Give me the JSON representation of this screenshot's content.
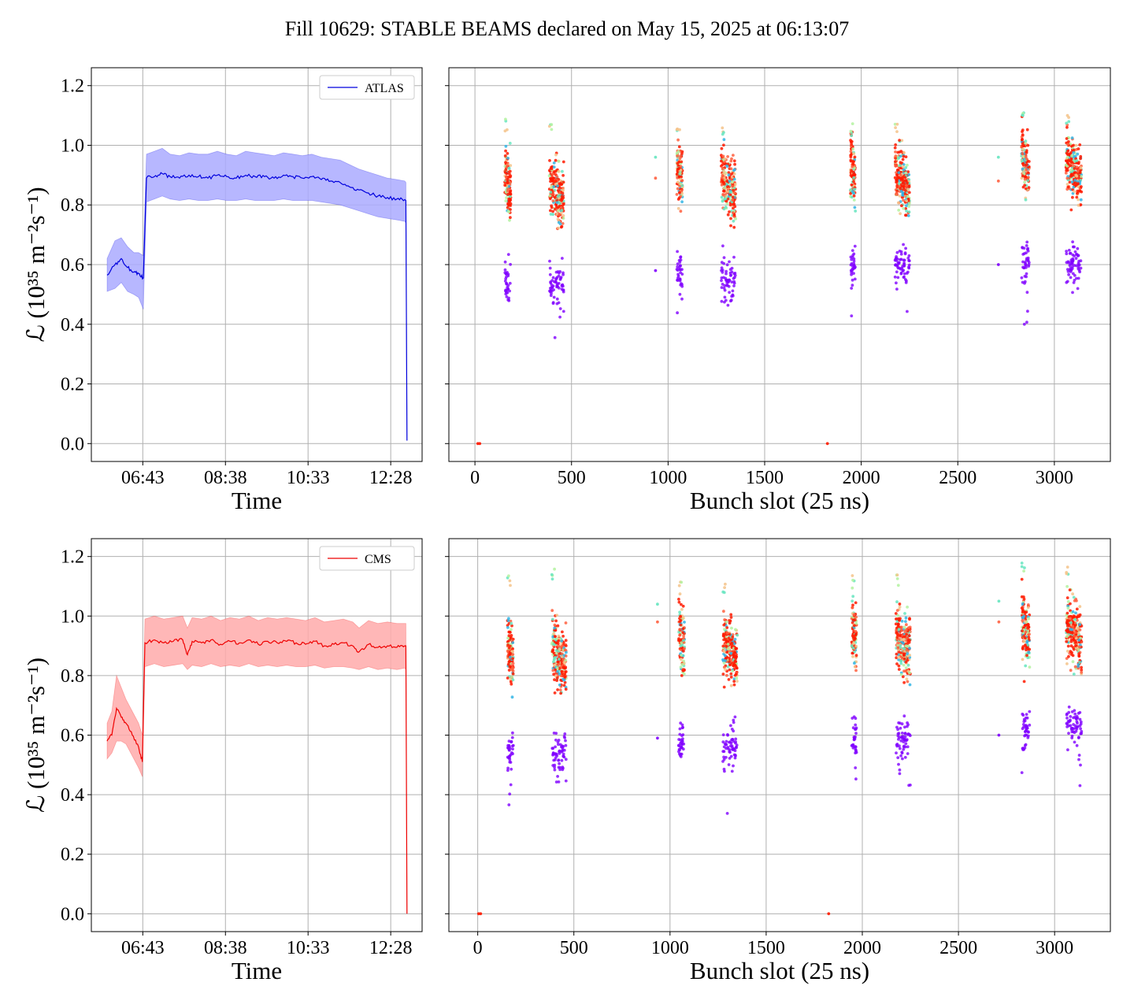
{
  "figure": {
    "title": "Fill 10629: STABLE BEAMS declared on May 15, 2025 at 06:13:07"
  },
  "chart_data": [
    {
      "type": "line",
      "panel": "top-left",
      "series": [
        {
          "name": "ATLAS",
          "color": "#0000dd",
          "band_color": "#aaaaff",
          "points": [
            [
              0.0,
              0.565,
              0.51,
              0.62
            ],
            [
              0.025,
              0.6,
              0.52,
              0.68
            ],
            [
              0.045,
              0.62,
              0.54,
              0.69
            ],
            [
              0.065,
              0.59,
              0.51,
              0.66
            ],
            [
              0.085,
              0.575,
              0.5,
              0.64
            ],
            [
              0.1,
              0.57,
              0.49,
              0.64
            ],
            [
              0.115,
              0.555,
              0.45,
              0.63
            ],
            [
              0.125,
              0.89,
              0.81,
              0.97
            ],
            [
              0.15,
              0.895,
              0.82,
              0.98
            ],
            [
              0.175,
              0.905,
              0.83,
              0.99
            ],
            [
              0.2,
              0.895,
              0.82,
              0.97
            ],
            [
              0.23,
              0.89,
              0.815,
              0.965
            ],
            [
              0.26,
              0.9,
              0.82,
              0.975
            ],
            [
              0.29,
              0.895,
              0.815,
              0.97
            ],
            [
              0.32,
              0.89,
              0.815,
              0.97
            ],
            [
              0.35,
              0.9,
              0.82,
              0.98
            ],
            [
              0.38,
              0.895,
              0.815,
              0.97
            ],
            [
              0.41,
              0.89,
              0.815,
              0.965
            ],
            [
              0.44,
              0.9,
              0.82,
              0.98
            ],
            [
              0.47,
              0.895,
              0.815,
              0.975
            ],
            [
              0.5,
              0.895,
              0.815,
              0.97
            ],
            [
              0.53,
              0.89,
              0.815,
              0.965
            ],
            [
              0.56,
              0.9,
              0.82,
              0.975
            ],
            [
              0.59,
              0.895,
              0.815,
              0.97
            ],
            [
              0.62,
              0.89,
              0.815,
              0.965
            ],
            [
              0.65,
              0.895,
              0.815,
              0.97
            ],
            [
              0.68,
              0.885,
              0.81,
              0.96
            ],
            [
              0.71,
              0.88,
              0.805,
              0.955
            ],
            [
              0.74,
              0.875,
              0.8,
              0.95
            ],
            [
              0.77,
              0.86,
              0.79,
              0.935
            ],
            [
              0.8,
              0.85,
              0.78,
              0.92
            ],
            [
              0.83,
              0.84,
              0.77,
              0.91
            ],
            [
              0.86,
              0.83,
              0.76,
              0.9
            ],
            [
              0.89,
              0.825,
              0.755,
              0.89
            ],
            [
              0.92,
              0.82,
              0.75,
              0.885
            ],
            [
              0.945,
              0.818,
              0.745,
              0.88
            ],
            [
              0.9485,
              0.815,
              0.74,
              0.875
            ],
            [
              0.952,
              0.01,
              0.01,
              0.01
            ]
          ]
        }
      ],
      "xlabel": "Time",
      "ylabel": "ℒ (10³⁵ m⁻²s⁻¹)",
      "xticks": [
        {
          "pos": 0.1133,
          "label": "06:43"
        },
        {
          "pos": 0.3757,
          "label": "08:38"
        },
        {
          "pos": 0.638,
          "label": "10:33"
        },
        {
          "pos": 0.9004,
          "label": "12:28"
        }
      ],
      "xlim": [
        -0.05,
        1.0
      ],
      "ylim": [
        -0.06,
        1.26
      ],
      "yticks": [
        0.0,
        0.2,
        0.4,
        0.6,
        0.8,
        1.0,
        1.2
      ],
      "grid": true,
      "legend": "top-right"
    },
    {
      "type": "scatter",
      "panel": "top-right",
      "xlabel": "Bunch slot (25 ns)",
      "ylabel": "",
      "xlim": [
        -135,
        3290
      ],
      "ylim": [
        -0.06,
        1.26
      ],
      "xticks": [
        0,
        500,
        1000,
        1500,
        2000,
        2500,
        3000
      ],
      "yticks": [
        0.0,
        0.2,
        0.4,
        0.6,
        0.8,
        1.0,
        1.2
      ],
      "grid": true,
      "clusters": [
        {
          "x_start": 155,
          "x_end": 185,
          "lead_y": 0.55,
          "train_y": 0.87,
          "top": 1.09,
          "bottom": 0.7
        },
        {
          "x_start": 385,
          "x_end": 460,
          "lead_y": 0.54,
          "train_y": 0.84,
          "top": 1.1,
          "bottom": 0.72
        },
        {
          "x_start": 1045,
          "x_end": 1075,
          "lead_y": 0.57,
          "train_y": 0.9,
          "top": 1.06,
          "bottom": 0.74
        },
        {
          "x_start": 1275,
          "x_end": 1350,
          "lead_y": 0.55,
          "train_y": 0.86,
          "top": 1.06,
          "bottom": 0.72
        },
        {
          "x_start": 1945,
          "x_end": 1970,
          "lead_y": 0.59,
          "train_y": 0.91,
          "top": 1.08,
          "bottom": 0.76
        },
        {
          "x_start": 2175,
          "x_end": 2250,
          "lead_y": 0.59,
          "train_y": 0.88,
          "top": 1.08,
          "bottom": 0.76
        },
        {
          "x_start": 2830,
          "x_end": 2870,
          "lead_y": 0.6,
          "train_y": 0.93,
          "top": 1.12,
          "bottom": 0.74
        },
        {
          "x_start": 3060,
          "x_end": 3140,
          "lead_y": 0.61,
          "train_y": 0.92,
          "top": 1.11,
          "bottom": 0.78
        }
      ],
      "isolated": [
        {
          "x": 935,
          "y": 0.96
        },
        {
          "x": 935,
          "y": 0.89
        },
        {
          "x": 935,
          "y": 0.58
        },
        {
          "x": 2710,
          "y": 0.96
        },
        {
          "x": 2710,
          "y": 0.88
        },
        {
          "x": 2710,
          "y": 0.6
        },
        {
          "x": 15,
          "y": 0.0
        },
        {
          "x": 25,
          "y": 0.0
        },
        {
          "x": 1825,
          "y": 0.0
        }
      ],
      "palette": [
        "#8000ff",
        "#33b5e5",
        "#66e5c0",
        "#b3f2a0",
        "#f5c38a",
        "#ff6040",
        "#ff1a00"
      ],
      "seed": 17
    },
    {
      "type": "line",
      "panel": "bottom-left",
      "series": [
        {
          "name": "CMS",
          "color": "#ee0000",
          "band_color": "#ffaaaa",
          "points": [
            [
              0.0,
              0.58,
              0.52,
              0.64
            ],
            [
              0.015,
              0.6,
              0.54,
              0.68
            ],
            [
              0.03,
              0.69,
              0.58,
              0.8
            ],
            [
              0.045,
              0.66,
              0.58,
              0.76
            ],
            [
              0.06,
              0.64,
              0.57,
              0.72
            ],
            [
              0.08,
              0.6,
              0.53,
              0.68
            ],
            [
              0.1,
              0.56,
              0.49,
              0.64
            ],
            [
              0.112,
              0.51,
              0.46,
              0.6
            ],
            [
              0.12,
              0.91,
              0.83,
              0.99
            ],
            [
              0.15,
              0.92,
              0.84,
              1.0
            ],
            [
              0.18,
              0.91,
              0.83,
              0.99
            ],
            [
              0.21,
              0.915,
              0.835,
              0.995
            ],
            [
              0.24,
              0.92,
              0.84,
              1.0
            ],
            [
              0.255,
              0.87,
              0.82,
              0.96
            ],
            [
              0.27,
              0.915,
              0.835,
              0.995
            ],
            [
              0.3,
              0.91,
              0.83,
              0.99
            ],
            [
              0.33,
              0.92,
              0.84,
              1.0
            ],
            [
              0.36,
              0.905,
              0.83,
              0.985
            ],
            [
              0.39,
              0.915,
              0.835,
              0.995
            ],
            [
              0.42,
              0.91,
              0.83,
              0.99
            ],
            [
              0.45,
              0.92,
              0.84,
              1.0
            ],
            [
              0.48,
              0.905,
              0.83,
              0.985
            ],
            [
              0.51,
              0.915,
              0.835,
              0.995
            ],
            [
              0.54,
              0.91,
              0.83,
              0.99
            ],
            [
              0.57,
              0.915,
              0.835,
              0.995
            ],
            [
              0.6,
              0.91,
              0.83,
              0.99
            ],
            [
              0.63,
              0.905,
              0.83,
              0.985
            ],
            [
              0.66,
              0.915,
              0.835,
              0.995
            ],
            [
              0.69,
              0.9,
              0.825,
              0.98
            ],
            [
              0.72,
              0.905,
              0.83,
              0.985
            ],
            [
              0.75,
              0.91,
              0.83,
              0.99
            ],
            [
              0.78,
              0.9,
              0.825,
              0.98
            ],
            [
              0.8,
              0.88,
              0.82,
              0.96
            ],
            [
              0.83,
              0.905,
              0.83,
              0.985
            ],
            [
              0.86,
              0.895,
              0.82,
              0.975
            ],
            [
              0.89,
              0.9,
              0.825,
              0.98
            ],
            [
              0.92,
              0.895,
              0.82,
              0.975
            ],
            [
              0.945,
              0.9,
              0.825,
              0.975
            ],
            [
              0.9485,
              0.9,
              0.82,
              0.975
            ],
            [
              0.952,
              0.0,
              0.0,
              0.0
            ]
          ]
        }
      ],
      "xlabel": "Time",
      "ylabel": "ℒ (10³⁵ m⁻²s⁻¹)",
      "xticks": [
        {
          "pos": 0.1133,
          "label": "06:43"
        },
        {
          "pos": 0.3757,
          "label": "08:38"
        },
        {
          "pos": 0.638,
          "label": "10:33"
        },
        {
          "pos": 0.9004,
          "label": "12:28"
        }
      ],
      "xlim": [
        -0.05,
        1.0
      ],
      "ylim": [
        -0.06,
        1.26
      ],
      "yticks": [
        0.0,
        0.2,
        0.4,
        0.6,
        0.8,
        1.0,
        1.2
      ],
      "grid": true,
      "legend": "top-right"
    },
    {
      "type": "scatter",
      "panel": "bottom-right",
      "xlabel": "Bunch slot (25 ns)",
      "ylabel": "",
      "xlim": [
        -150,
        3290
      ],
      "ylim": [
        -0.06,
        1.26
      ],
      "xticks": [
        0,
        500,
        1000,
        1500,
        2000,
        2500,
        3000
      ],
      "yticks": [
        0.0,
        0.2,
        0.4,
        0.6,
        0.8,
        1.0,
        1.2
      ],
      "grid": true,
      "clusters": [
        {
          "x_start": 155,
          "x_end": 185,
          "lead_y": 0.55,
          "train_y": 0.88,
          "top": 1.15,
          "bottom": 0.72
        },
        {
          "x_start": 385,
          "x_end": 460,
          "lead_y": 0.54,
          "train_y": 0.86,
          "top": 1.16,
          "bottom": 0.74
        },
        {
          "x_start": 1045,
          "x_end": 1075,
          "lead_y": 0.57,
          "train_y": 0.92,
          "top": 1.12,
          "bottom": 0.76
        },
        {
          "x_start": 1275,
          "x_end": 1350,
          "lead_y": 0.56,
          "train_y": 0.88,
          "top": 1.12,
          "bottom": 0.74
        },
        {
          "x_start": 1945,
          "x_end": 1970,
          "lead_y": 0.59,
          "train_y": 0.94,
          "top": 1.14,
          "bottom": 0.78
        },
        {
          "x_start": 2175,
          "x_end": 2250,
          "lead_y": 0.59,
          "train_y": 0.9,
          "top": 1.14,
          "bottom": 0.76
        },
        {
          "x_start": 2830,
          "x_end": 2870,
          "lead_y": 0.62,
          "train_y": 0.95,
          "top": 1.19,
          "bottom": 0.78
        },
        {
          "x_start": 3060,
          "x_end": 3140,
          "lead_y": 0.63,
          "train_y": 0.94,
          "top": 1.19,
          "bottom": 0.8
        }
      ],
      "isolated": [
        {
          "x": 935,
          "y": 1.04
        },
        {
          "x": 935,
          "y": 0.98
        },
        {
          "x": 935,
          "y": 0.59
        },
        {
          "x": 2710,
          "y": 1.05
        },
        {
          "x": 2710,
          "y": 0.98
        },
        {
          "x": 2710,
          "y": 0.6
        },
        {
          "x": 5,
          "y": 0.0
        },
        {
          "x": 15,
          "y": 0.0
        },
        {
          "x": 1825,
          "y": 0.0
        }
      ],
      "palette": [
        "#8000ff",
        "#33b5e5",
        "#66e5c0",
        "#b3f2a0",
        "#f5c38a",
        "#ff6040",
        "#ff1a00"
      ],
      "seed": 29
    }
  ]
}
